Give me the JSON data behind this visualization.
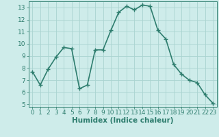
{
  "xlabel": "Humidex (Indice chaleur)",
  "x": [
    0,
    1,
    2,
    3,
    4,
    5,
    6,
    7,
    8,
    9,
    10,
    11,
    12,
    13,
    14,
    15,
    16,
    17,
    18,
    19,
    20,
    21,
    22,
    23
  ],
  "y": [
    7.7,
    6.6,
    7.9,
    8.9,
    9.7,
    9.6,
    6.3,
    6.6,
    9.5,
    9.5,
    11.1,
    12.6,
    13.1,
    12.8,
    13.2,
    13.1,
    11.1,
    10.4,
    8.3,
    7.5,
    7.0,
    6.8,
    5.8,
    5.1
  ],
  "line_color": "#2e7d6e",
  "marker": "+",
  "marker_size": 4,
  "linewidth": 1.2,
  "ylim": [
    4.8,
    13.5
  ],
  "xlim": [
    -0.5,
    23.5
  ],
  "yticks": [
    5,
    6,
    7,
    8,
    9,
    10,
    11,
    12,
    13
  ],
  "xticks": [
    0,
    1,
    2,
    3,
    4,
    5,
    6,
    7,
    8,
    9,
    10,
    11,
    12,
    13,
    14,
    15,
    16,
    17,
    18,
    19,
    20,
    21,
    22,
    23
  ],
  "bg_color": "#ceecea",
  "grid_color": "#aad4d0",
  "tick_fontsize": 6.5,
  "xlabel_fontsize": 7.5,
  "markeredgewidth": 1.0
}
